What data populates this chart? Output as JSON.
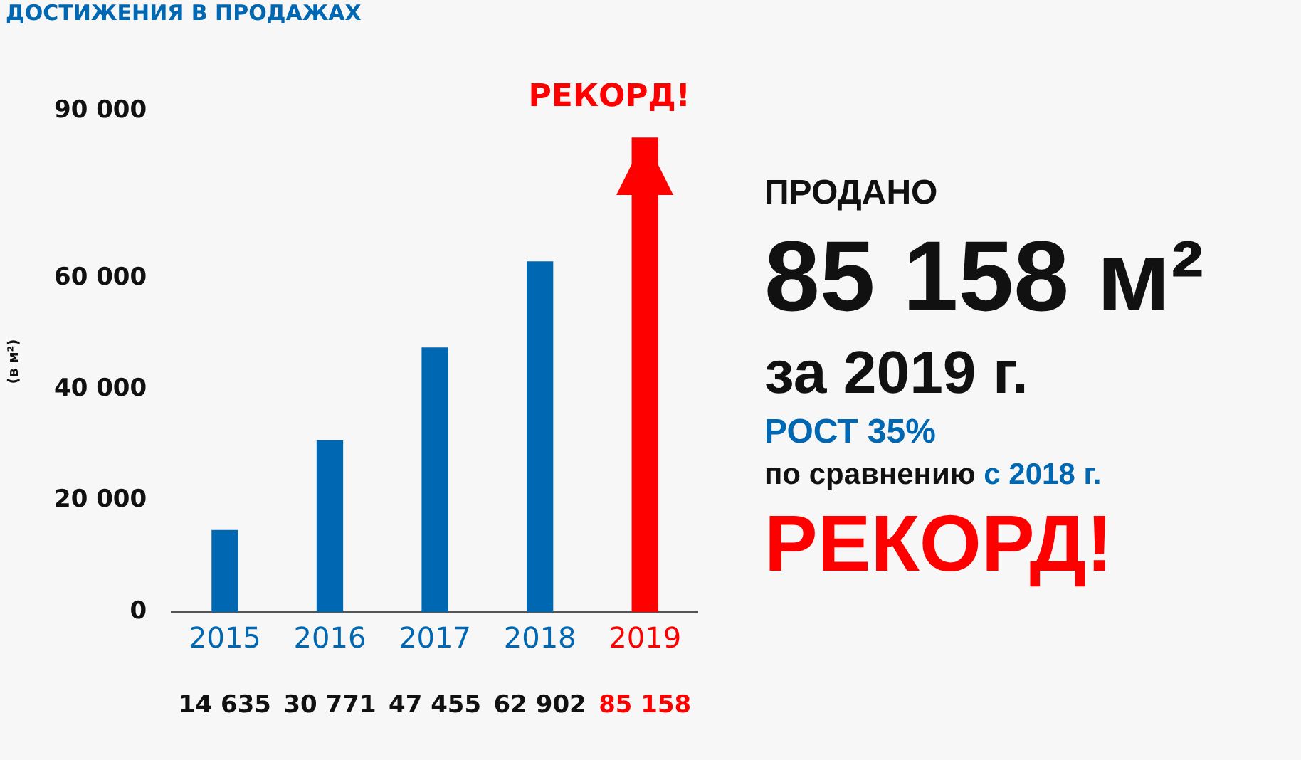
{
  "chart_data": {
    "type": "bar",
    "title": "ДОСТИЖЕНИЯ В ПРОДАЖАХ",
    "ylabel": "(в м²)",
    "categories": [
      "2015",
      "2016",
      "2017",
      "2018",
      "2019"
    ],
    "values": [
      14635,
      30771,
      47455,
      62902,
      85158
    ],
    "colors": [
      "#0068b3",
      "#0068b3",
      "#0068b3",
      "#0068b3",
      "#ff0000"
    ],
    "data_labels": true,
    "ylim": [
      0,
      90000
    ],
    "yticks": [
      0,
      20000,
      40000,
      60000,
      90000
    ],
    "grid": false,
    "legend": false,
    "annotations": [
      {
        "text": "РЕКОРД!",
        "x": "2019",
        "y": 85158
      },
      "ПРОДАНО",
      "85 158 м²",
      "за 2019 г.",
      "РОСТ 35%",
      "по сравнению",
      "с 2018 г.",
      "РЕКОРД!"
    ]
  }
}
